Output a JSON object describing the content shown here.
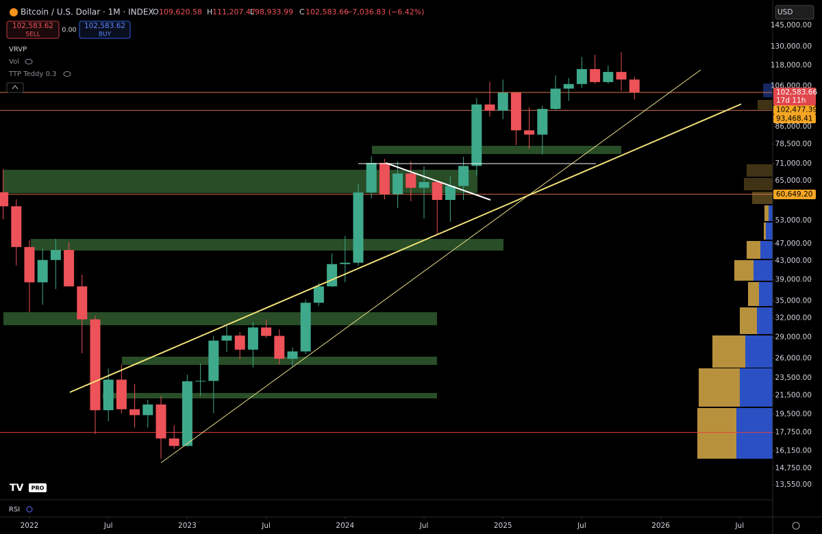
{
  "header": {
    "title": "Bitcoin / U.S. Dollar · 1M · INDEX",
    "open_label": "O",
    "open": "109,620.58",
    "high_label": "H",
    "high": "111,207.47",
    "low_label": "L",
    "low": "98,933.99",
    "close_label": "C",
    "close": "102,583.66",
    "change": "−7,036.83 (−6.42%)",
    "sell_price": "102,583.62",
    "sell": "SELL",
    "spread": "0.00",
    "buy_price": "102,583.62",
    "buy": "BUY",
    "currency": "USD"
  },
  "indicators": [
    "VRVP",
    "Vol",
    "TTP Teddy 0.3"
  ],
  "pane": "RSI",
  "logo": "PRO",
  "price_labels": [
    "102,583.66",
    "17d 11h",
    "102,477.39",
    "93,468.41",
    "60,649.20"
  ],
  "chart_data": {
    "type": "candlestick",
    "log_scale": true,
    "up_color": "#3fa98c",
    "down_color": "#ec5258",
    "x": [
      "2021-11",
      "2021-12",
      "2022-01",
      "2022-02",
      "2022-03",
      "2022-04",
      "2022-05",
      "2022-06",
      "2022-07",
      "2022-08",
      "2022-09",
      "2022-10",
      "2022-11",
      "2022-12",
      "2023-01",
      "2023-02",
      "2023-03",
      "2023-04",
      "2023-05",
      "2023-06",
      "2023-07",
      "2023-08",
      "2023-09",
      "2023-10",
      "2023-11",
      "2023-12",
      "2024-01",
      "2024-02",
      "2024-03",
      "2024-04",
      "2024-05",
      "2024-06",
      "2024-07",
      "2024-08",
      "2024-09",
      "2024-10",
      "2024-11",
      "2024-12",
      "2025-01",
      "2025-02",
      "2025-03",
      "2025-04",
      "2025-05",
      "2025-06",
      "2025-07",
      "2025-08",
      "2025-09",
      "2025-10",
      "2025-11"
    ],
    "open": [
      61300,
      57000,
      46200,
      38500,
      43200,
      45500,
      37700,
      31800,
      19900,
      23300,
      20000,
      19400,
      20500,
      17200,
      16550,
      23100,
      23150,
      28500,
      29250,
      27200,
      30500,
      29200,
      25950,
      26950,
      34650,
      37700,
      42300,
      42600,
      61200,
      71300,
      60700,
      67500,
      62700,
      64600,
      58900,
      63300,
      70200,
      96400,
      93400,
      102400,
      84350,
      82500,
      94200,
      104600,
      107100,
      115700,
      108200,
      114000,
      109620.58
    ],
    "high": [
      69000,
      59100,
      47900,
      45800,
      48200,
      47400,
      40000,
      32400,
      24700,
      25200,
      22800,
      21000,
      21400,
      18400,
      23900,
      25300,
      29200,
      31000,
      29800,
      31400,
      31800,
      30200,
      27500,
      35200,
      38400,
      44700,
      48900,
      64000,
      73800,
      72800,
      71900,
      71900,
      70000,
      65000,
      66500,
      73600,
      99800,
      108300,
      109600,
      102500,
      95000,
      95800,
      112000,
      110500,
      123200,
      124500,
      117900,
      126200,
      111207.47
    ],
    "low": [
      53300,
      42000,
      33000,
      34300,
      37200,
      37700,
      26700,
      17600,
      18800,
      19600,
      18200,
      18200,
      15500,
      16300,
      16500,
      21400,
      19600,
      26900,
      25900,
      24800,
      28900,
      25200,
      24900,
      26600,
      34100,
      37600,
      38500,
      41900,
      59300,
      59100,
      56500,
      58500,
      53500,
      49100,
      52600,
      58900,
      66800,
      90500,
      89300,
      78200,
      76600,
      74500,
      93400,
      98200,
      105100,
      107300,
      107300,
      103500,
      98933.99
    ],
    "close": [
      57000,
      46200,
      38500,
      43200,
      45500,
      37700,
      31800,
      19900,
      23300,
      20000,
      19400,
      20500,
      17200,
      16550,
      23100,
      23150,
      28500,
      29250,
      27200,
      30500,
      29200,
      25950,
      26950,
      34650,
      37700,
      42300,
      42600,
      61200,
      71300,
      60700,
      67500,
      62700,
      64600,
      58900,
      63300,
      70200,
      96400,
      93400,
      102400,
      84350,
      82500,
      94200,
      104600,
      107100,
      115700,
      108200,
      114000,
      109620.58,
      102583.66
    ],
    "xticks": [
      {
        "value": "2022-01",
        "label": "2022"
      },
      {
        "value": "2022-07",
        "label": "Jul"
      },
      {
        "value": "2023-01",
        "label": "2023"
      },
      {
        "value": "2023-07",
        "label": "Jul"
      },
      {
        "value": "2024-01",
        "label": "2024"
      },
      {
        "value": "2024-07",
        "label": "Jul"
      },
      {
        "value": "2025-01",
        "label": "2025"
      },
      {
        "value": "2025-07",
        "label": "Jul"
      },
      {
        "value": "2026-01",
        "label": "2026"
      },
      {
        "value": "2026-07",
        "label": "Jul"
      }
    ],
    "ylim": [
      12760,
      162360
    ],
    "yticks": [
      {
        "value": 145000,
        "label": "145,000.00"
      },
      {
        "value": 130000,
        "label": "130,000.00"
      },
      {
        "value": 118000,
        "label": "118,000.00"
      },
      {
        "value": 106000,
        "label": "106,000.00"
      },
      {
        "value": 86000,
        "label": "86,000.00"
      },
      {
        "value": 78500,
        "label": "78,500.00"
      },
      {
        "value": 71000,
        "label": "71,000.00"
      },
      {
        "value": 65000,
        "label": "65,000.00"
      },
      {
        "value": 53000,
        "label": "53,000.00"
      },
      {
        "value": 47000,
        "label": "47,000.00"
      },
      {
        "value": 43000,
        "label": "43,000.00"
      },
      {
        "value": 39000,
        "label": "39,000.00"
      },
      {
        "value": 35000,
        "label": "35,000.00"
      },
      {
        "value": 32000,
        "label": "32,000.00"
      },
      {
        "value": 29000,
        "label": "29,000.00"
      },
      {
        "value": 26000,
        "label": "26,000.00"
      },
      {
        "value": 23500,
        "label": "23,500.00"
      },
      {
        "value": 21500,
        "label": "21,500.00"
      },
      {
        "value": 19500,
        "label": "19,500.00"
      },
      {
        "value": 17750,
        "label": "17,750.00"
      },
      {
        "value": 16150,
        "label": "16,150.00"
      },
      {
        "value": 14750,
        "label": "14,750.00"
      },
      {
        "value": 13550,
        "label": "13,550.00"
      }
    ],
    "hlines": [
      {
        "value": 102583.66,
        "color": "#d9794a"
      },
      {
        "value": 93468.41,
        "color": "#d9794a"
      },
      {
        "value": 60649.2,
        "color": "#d9794a"
      },
      {
        "value": 17750,
        "color": "#e8413f"
      }
    ],
    "grid": false
  }
}
